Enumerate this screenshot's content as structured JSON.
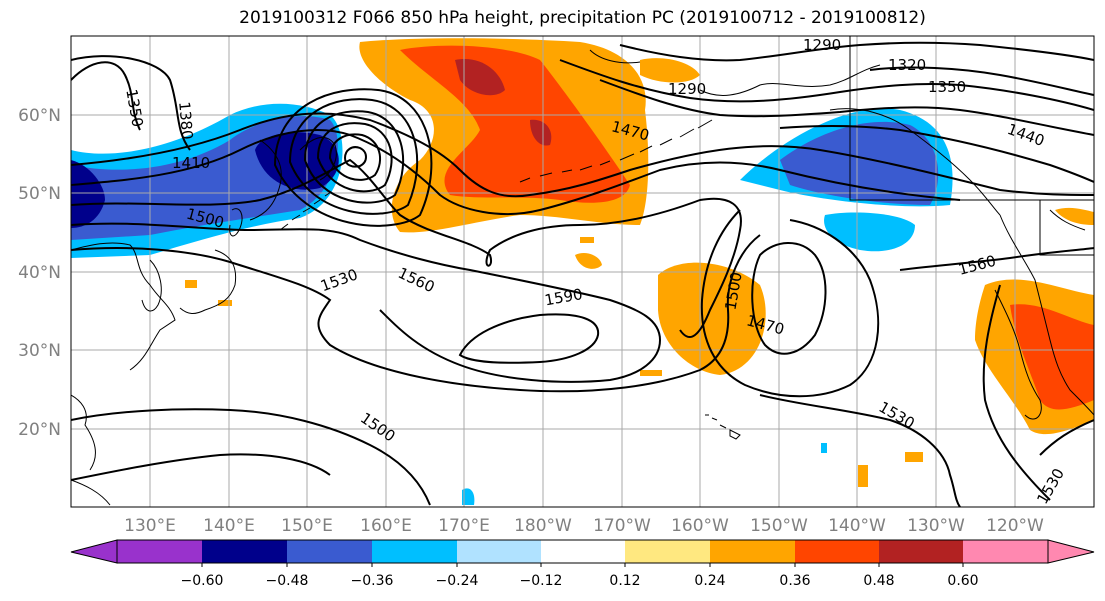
{
  "title": "2019100312 F066 850 hPa height, precipitation PC (2019100712 - 2019100812)",
  "lat_labels": [
    "60°N",
    "50°N",
    "40°N",
    "30°N",
    "20°N"
  ],
  "lon_labels": [
    "130°E",
    "140°E",
    "150°E",
    "160°E",
    "170°E",
    "180°W",
    "170°W",
    "160°W",
    "150°W",
    "140°W",
    "130°W",
    "120°W"
  ],
  "contour_labels": [
    "1350",
    "1380",
    "1410",
    "1500",
    "1530",
    "1560",
    "1590",
    "1500",
    "1470",
    "1530",
    "1530",
    "1560",
    "1500",
    "1470",
    "1440",
    "1350",
    "1320",
    "1290",
    "1290"
  ],
  "colorbar": {
    "ticks": [
      "−0.60",
      "−0.48",
      "−0.36",
      "−0.24",
      "−0.12",
      "0.12",
      "0.24",
      "0.36",
      "0.48",
      "0.60"
    ],
    "colors": [
      "#9932cc",
      "#00008b",
      "#3a5bd0",
      "#00bfff",
      "#b0e2ff",
      "#ffffff",
      "#ffe880",
      "#ffa500",
      "#ff4500",
      "#b22222",
      "#ff88b0"
    ]
  },
  "colors": {
    "land": "#ffffff",
    "coast": "#000000",
    "grid": "#a9a9a9",
    "tick_label": "#808080"
  }
}
